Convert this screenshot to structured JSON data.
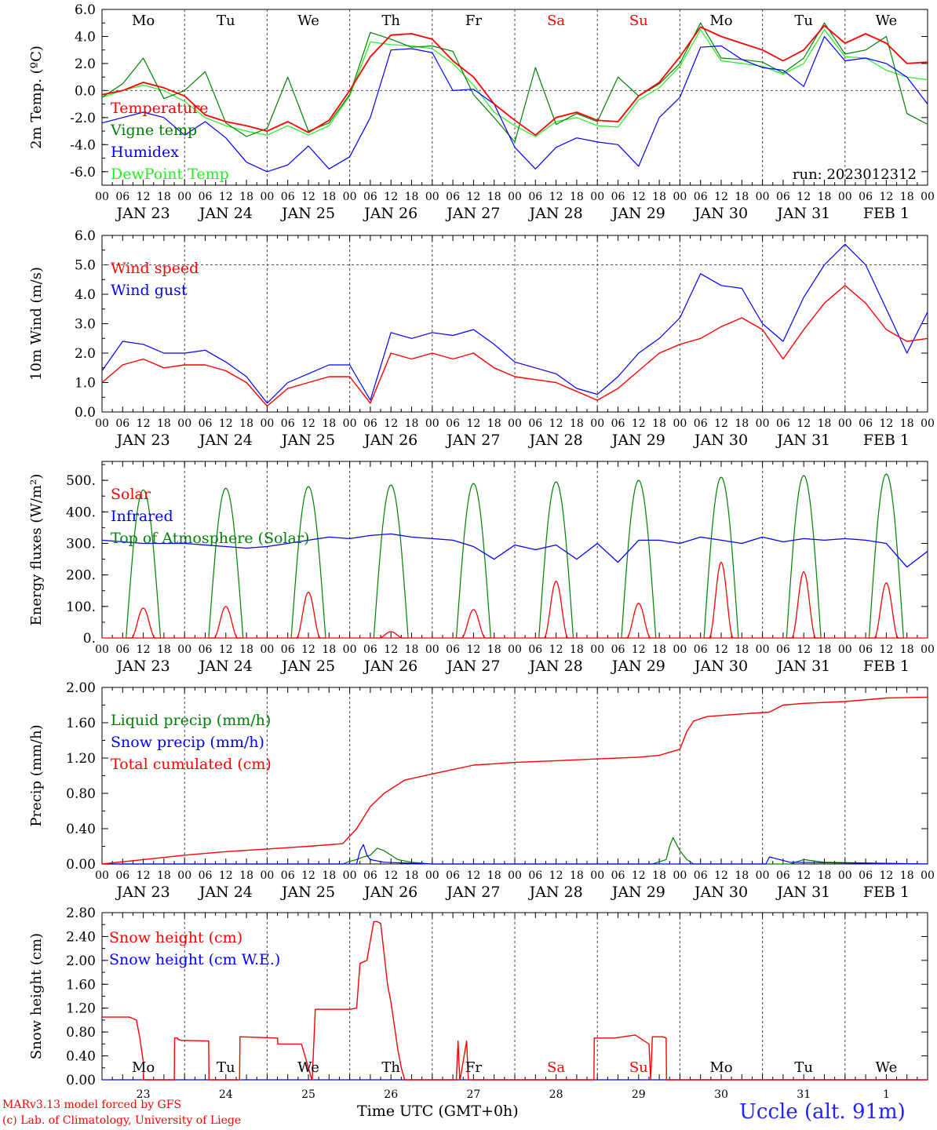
{
  "header": {
    "run_label": "run: 2023012312"
  },
  "footer": {
    "credit_line1": "MARv3.13 model forced by GFS",
    "credit_line2": "(c) Lab. of Climatology, University of Liege",
    "time_axis_label": "Time UTC (GMT+0h)",
    "station": "Uccle (alt. 91m)"
  },
  "days": {
    "weekdays": [
      "Mo",
      "Tu",
      "We",
      "Th",
      "Fr",
      "Sa",
      "Su",
      "Mo",
      "Tu",
      "We"
    ],
    "weekend_flags": [
      false,
      false,
      false,
      false,
      false,
      true,
      true,
      false,
      false,
      false
    ],
    "dates": [
      "JAN 23",
      "JAN 24",
      "JAN 25",
      "JAN 26",
      "JAN 27",
      "JAN 28",
      "JAN 29",
      "JAN 30",
      "JAN 31",
      "FEB  1"
    ],
    "day_numbers": [
      "23",
      "24",
      "25",
      "26",
      "27",
      "28",
      "29",
      "30",
      "31",
      "1"
    ],
    "hour_labels": [
      "00",
      "06",
      "12",
      "18"
    ],
    "final_hour_label": "00"
  },
  "colors": {
    "red": "#ff0000",
    "green": "#008000",
    "blue": "#0000ff",
    "lightgreen": "#22ee22",
    "weekend": "#ff0000",
    "station": "#2222ff"
  },
  "chart_data": [
    {
      "id": "temperature",
      "type": "line",
      "ylabel": "2m Temp. (ºC)",
      "ylim": [
        -7.0,
        6.0
      ],
      "yticks": [
        -6,
        -4,
        -2,
        0,
        2,
        4,
        6
      ],
      "ytick_labels": [
        "-6.0",
        "-4.0",
        "-2.0",
        "0.0",
        "2.0",
        "4.0",
        "6.0"
      ],
      "zero_line": true,
      "x_unit": "hours since JAN 23 00 UTC",
      "series": [
        {
          "name": "Temperature",
          "color": "red",
          "x": [
            0,
            6,
            12,
            18,
            24,
            30,
            36,
            42,
            48,
            54,
            60,
            66,
            72,
            78,
            84,
            90,
            96,
            102,
            108,
            114,
            120,
            126,
            132,
            138,
            144,
            150,
            156,
            162,
            168,
            174,
            180,
            186,
            192,
            198,
            204,
            210,
            216,
            222,
            228,
            234,
            240
          ],
          "y": [
            -0.3,
            0.0,
            0.6,
            0.2,
            -0.4,
            -1.8,
            -2.3,
            -2.6,
            -3.0,
            -2.3,
            -3.1,
            -2.2,
            0.0,
            2.5,
            4.1,
            4.2,
            3.8,
            2.2,
            1.0,
            -1.0,
            -2.2,
            -3.3,
            -2.0,
            -1.6,
            -2.2,
            -2.3,
            -0.4,
            0.6,
            2.5,
            4.7,
            4.0,
            3.5,
            3.0,
            2.2,
            3.0,
            4.8,
            3.5,
            4.2,
            3.5,
            2.0,
            2.1
          ]
        },
        {
          "name": "Vigne temp",
          "color": "green",
          "x": [
            0,
            6,
            12,
            18,
            24,
            30,
            36,
            42,
            48,
            54,
            60,
            66,
            72,
            78,
            84,
            90,
            96,
            102,
            108,
            114,
            120,
            126,
            132,
            138,
            144,
            150,
            156,
            162,
            168,
            174,
            180,
            186,
            192,
            198,
            204,
            210,
            216,
            222,
            228,
            234,
            240
          ],
          "y": [
            -0.5,
            0.5,
            2.4,
            -0.6,
            0.0,
            1.4,
            -2.4,
            -3.4,
            -2.8,
            1.0,
            -3.0,
            -2.4,
            -0.3,
            4.3,
            3.8,
            3.2,
            3.3,
            2.9,
            -0.3,
            -2.0,
            -3.8,
            1.7,
            -2.5,
            -1.7,
            -2.3,
            1.0,
            -0.4,
            0.5,
            2.0,
            5.0,
            2.4,
            2.3,
            2.1,
            1.3,
            2.4,
            5.0,
            2.7,
            3.0,
            4.0,
            -1.7,
            -2.5
          ]
        },
        {
          "name": "Humidex",
          "color": "blue",
          "x": [
            0,
            6,
            12,
            18,
            24,
            30,
            36,
            42,
            48,
            54,
            60,
            66,
            72,
            78,
            84,
            90,
            96,
            102,
            108,
            114,
            120,
            126,
            132,
            138,
            144,
            150,
            156,
            162,
            168,
            174,
            180,
            186,
            192,
            198,
            204,
            210,
            216,
            222,
            228,
            234,
            240
          ],
          "y": [
            -2.4,
            -2.0,
            -1.6,
            -2.0,
            -3.3,
            -2.3,
            -3.5,
            -5.3,
            -6.0,
            -5.5,
            -4.1,
            -5.8,
            -4.9,
            -2.0,
            3.0,
            3.1,
            2.8,
            0.0,
            0.1,
            -1.0,
            -4.2,
            -5.8,
            -4.2,
            -3.5,
            -3.8,
            -4.0,
            -5.6,
            -2.0,
            -0.5,
            3.2,
            3.3,
            2.3,
            1.7,
            1.5,
            0.3,
            4.0,
            2.2,
            2.4,
            2.0,
            1.0,
            -1.0
          ]
        },
        {
          "name": "DewPoint Temp",
          "color": "lightgreen",
          "x": [
            0,
            6,
            12,
            18,
            24,
            30,
            36,
            42,
            48,
            54,
            60,
            66,
            72,
            78,
            84,
            90,
            96,
            102,
            108,
            114,
            120,
            126,
            132,
            138,
            144,
            150,
            156,
            162,
            168,
            174,
            180,
            186,
            192,
            198,
            204,
            210,
            216,
            222,
            228,
            234,
            240
          ],
          "y": [
            -0.5,
            0.0,
            0.4,
            0.0,
            -0.8,
            -2.0,
            -2.6,
            -3.0,
            -3.3,
            -2.6,
            -3.3,
            -2.6,
            -0.4,
            3.6,
            3.4,
            3.3,
            3.1,
            2.0,
            0.4,
            -1.6,
            -2.6,
            -3.4,
            -2.3,
            -2.0,
            -2.6,
            -2.7,
            -0.7,
            0.2,
            1.8,
            4.5,
            2.2,
            2.0,
            1.8,
            1.2,
            2.0,
            4.5,
            2.5,
            2.4,
            1.5,
            1.0,
            0.8
          ]
        }
      ]
    },
    {
      "id": "wind",
      "type": "line",
      "ylabel": "10m Wind (m/s)",
      "ylim": [
        0.0,
        6.0
      ],
      "yticks": [
        0,
        1,
        2,
        3,
        4,
        5,
        6
      ],
      "ytick_labels": [
        "0.0",
        "1.0",
        "2.0",
        "3.0",
        "4.0",
        "5.0",
        "6.0"
      ],
      "dashed_line": 5.0,
      "x_unit": "hours since JAN 23 00 UTC",
      "series": [
        {
          "name": "Wind speed",
          "color": "red",
          "x": [
            0,
            6,
            12,
            18,
            24,
            30,
            36,
            42,
            48,
            54,
            60,
            66,
            72,
            78,
            84,
            90,
            96,
            102,
            108,
            114,
            120,
            126,
            132,
            138,
            144,
            150,
            156,
            162,
            168,
            174,
            180,
            186,
            192,
            198,
            204,
            210,
            216,
            222,
            228,
            234,
            240
          ],
          "y": [
            1.0,
            1.6,
            1.8,
            1.5,
            1.6,
            1.6,
            1.4,
            1.0,
            0.2,
            0.8,
            1.0,
            1.2,
            1.2,
            0.3,
            2.0,
            1.8,
            2.0,
            1.8,
            2.0,
            1.5,
            1.2,
            1.1,
            1.0,
            0.7,
            0.4,
            0.8,
            1.4,
            2.0,
            2.3,
            2.5,
            2.9,
            3.2,
            2.8,
            1.8,
            2.8,
            3.7,
            4.3,
            3.7,
            2.8,
            2.4,
            2.5
          ]
        },
        {
          "name": "Wind gust",
          "color": "blue",
          "x": [
            0,
            6,
            12,
            18,
            24,
            30,
            36,
            42,
            48,
            54,
            60,
            66,
            72,
            78,
            84,
            90,
            96,
            102,
            108,
            114,
            120,
            126,
            132,
            138,
            144,
            150,
            156,
            162,
            168,
            174,
            180,
            186,
            192,
            198,
            204,
            210,
            216,
            222,
            228,
            234,
            240
          ],
          "y": [
            1.4,
            2.4,
            2.3,
            2.0,
            2.0,
            2.1,
            1.7,
            1.2,
            0.3,
            1.0,
            1.3,
            1.6,
            1.6,
            0.4,
            2.7,
            2.5,
            2.7,
            2.6,
            2.8,
            2.3,
            1.7,
            1.5,
            1.3,
            0.8,
            0.6,
            1.2,
            2.0,
            2.5,
            3.2,
            4.7,
            4.3,
            4.2,
            3.0,
            2.4,
            3.9,
            5.0,
            5.7,
            5.0,
            3.5,
            2.0,
            3.4
          ]
        }
      ]
    },
    {
      "id": "energy",
      "type": "line",
      "ylabel": "Energy fluxes (W/m²)",
      "ylim": [
        0,
        560
      ],
      "yticks": [
        0,
        100,
        200,
        300,
        400,
        500
      ],
      "ytick_labels": [
        "0.",
        "100.",
        "200.",
        "300.",
        "400.",
        "500."
      ],
      "x_unit": "hours since JAN 23 00 UTC",
      "toa_peaks": [
        470,
        475,
        480,
        485,
        490,
        495,
        500,
        510,
        515,
        520
      ],
      "solar_peaks": [
        95,
        100,
        145,
        20,
        90,
        180,
        110,
        240,
        210,
        175
      ],
      "series": [
        {
          "name": "Solar",
          "color": "red"
        },
        {
          "name": "Infrared",
          "color": "blue",
          "x": [
            0,
            6,
            12,
            18,
            24,
            30,
            36,
            42,
            48,
            54,
            60,
            66,
            72,
            78,
            84,
            90,
            96,
            102,
            108,
            114,
            120,
            126,
            132,
            138,
            144,
            150,
            156,
            162,
            168,
            174,
            180,
            186,
            192,
            198,
            204,
            210,
            216,
            222,
            228,
            234,
            240
          ],
          "y": [
            310,
            305,
            300,
            300,
            300,
            295,
            290,
            285,
            290,
            300,
            310,
            320,
            315,
            325,
            330,
            320,
            315,
            310,
            290,
            250,
            295,
            280,
            295,
            250,
            300,
            240,
            310,
            310,
            300,
            320,
            310,
            300,
            320,
            305,
            315,
            310,
            315,
            310,
            300,
            225,
            275
          ]
        },
        {
          "name": "Top of Atmosphere (Solar)",
          "color": "green"
        }
      ]
    },
    {
      "id": "precip",
      "type": "line",
      "ylabel": "Precip (mm/h)",
      "ylim": [
        0,
        2.0
      ],
      "yticks": [
        0,
        0.4,
        0.8,
        1.2,
        1.6,
        2.0
      ],
      "ytick_labels": [
        "0.00",
        "0.40",
        "0.80",
        "1.20",
        "1.60",
        "2.00"
      ],
      "x_unit": "hours since JAN 23 00 UTC",
      "series": [
        {
          "name": "Liquid precip (mm/h)",
          "color": "green",
          "x": [
            0,
            70,
            72,
            74,
            76,
            78,
            80,
            82,
            84,
            86,
            90,
            96,
            160,
            164,
            165,
            166,
            168,
            170,
            172,
            200,
            204,
            210,
            240
          ],
          "y": [
            0,
            0,
            0.03,
            0.05,
            0.08,
            0.1,
            0.18,
            0.15,
            0.1,
            0.05,
            0.02,
            0.0,
            0.0,
            0.05,
            0.2,
            0.3,
            0.15,
            0.05,
            0.0,
            0.0,
            0.05,
            0.02,
            0.0
          ]
        },
        {
          "name": "Snow precip (mm/h)",
          "color": "blue",
          "x": [
            0,
            74,
            75,
            76,
            77,
            78,
            82,
            96,
            193,
            194,
            196,
            200,
            240
          ],
          "y": [
            0,
            0,
            0.15,
            0.22,
            0.1,
            0.05,
            0.02,
            0.0,
            0.0,
            0.08,
            0.06,
            0.02,
            0.0
          ]
        },
        {
          "name": "Total cumulated (cm)",
          "color": "red",
          "x": [
            0,
            12,
            24,
            36,
            48,
            60,
            70,
            74,
            78,
            82,
            88,
            96,
            108,
            120,
            132,
            144,
            156,
            162,
            168,
            170,
            172,
            176,
            186,
            194,
            198,
            204,
            216,
            228,
            240
          ],
          "y": [
            0.0,
            0.05,
            0.1,
            0.14,
            0.17,
            0.2,
            0.23,
            0.4,
            0.65,
            0.8,
            0.95,
            1.02,
            1.12,
            1.15,
            1.17,
            1.19,
            1.21,
            1.23,
            1.3,
            1.5,
            1.62,
            1.67,
            1.7,
            1.72,
            1.8,
            1.82,
            1.84,
            1.88,
            1.89
          ]
        }
      ]
    },
    {
      "id": "snow",
      "type": "line",
      "ylabel": "Snow height (cm)",
      "ylim": [
        0,
        2.8
      ],
      "yticks": [
        0,
        0.4,
        0.8,
        1.2,
        1.6,
        2.0,
        2.4,
        2.8
      ],
      "ytick_labels": [
        "0.00",
        "0.40",
        "0.80",
        "1.20",
        "1.60",
        "2.00",
        "2.40",
        "2.80"
      ],
      "x_unit": "hours since JAN 23 00 UTC",
      "series": [
        {
          "name": "Snow height (cm)",
          "color": "red",
          "x": [
            0,
            8,
            10,
            11,
            12,
            12.1,
            21,
            21.1,
            22,
            22.1,
            23,
            24,
            31,
            31.1,
            38,
            40,
            40.1,
            51,
            51.1,
            58,
            61,
            61.1,
            62,
            62.1,
            72,
            74,
            75,
            77,
            79,
            80,
            81,
            83,
            84,
            85,
            86,
            87,
            88,
            88.1,
            103,
            103.5,
            104,
            104.1,
            106,
            106.5,
            107,
            107.5,
            143,
            143.1,
            149,
            155,
            159,
            159.5,
            160,
            163,
            164,
            164.1,
            240
          ],
          "y": [
            1.05,
            1.05,
            1.0,
            0.7,
            0.3,
            0.0,
            0.0,
            0.7,
            0.7,
            0.68,
            0.66,
            0.66,
            0.65,
            0.0,
            0.0,
            0.0,
            0.72,
            0.7,
            0.6,
            0.6,
            0.0,
            0.0,
            1.18,
            1.18,
            1.18,
            1.2,
            1.95,
            2.0,
            2.65,
            2.65,
            2.62,
            1.6,
            1.3,
            0.9,
            0.5,
            0.2,
            0.0,
            0.0,
            0.0,
            0.65,
            0.0,
            0.0,
            0.65,
            0.0,
            0.0,
            0.0,
            0.0,
            0.7,
            0.7,
            0.75,
            0.6,
            0.0,
            0.72,
            0.72,
            0.7,
            0.0,
            0.0
          ]
        },
        {
          "name": "Snow height (cm W.E.)",
          "color": "blue",
          "x": [
            0,
            240
          ],
          "y": [
            0,
            0
          ]
        }
      ]
    }
  ]
}
